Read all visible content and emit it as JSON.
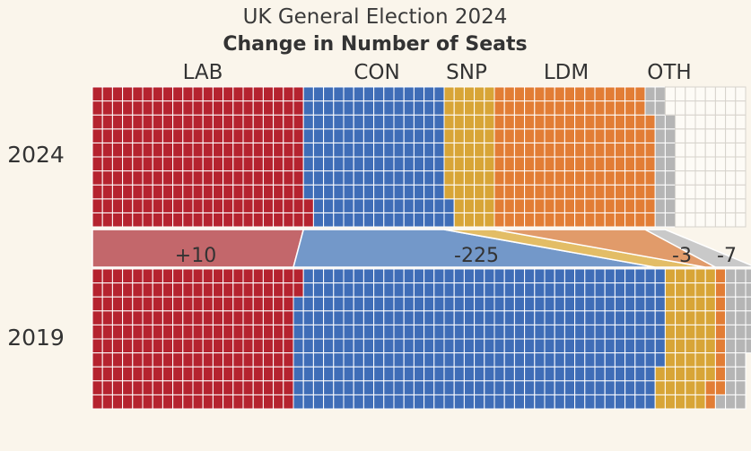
{
  "chart_data": {
    "type": "waffle",
    "title": "UK General Election 2024",
    "subtitle": "Change in Number of Seats",
    "unit": "seats",
    "rows": [
      "2024",
      "2019"
    ],
    "seats_per_column": 10,
    "total_columns": 65,
    "parties": [
      {
        "key": "lab",
        "label": "LAB",
        "color": "#b5232f",
        "seats_2024": 212,
        "seats_2019": 202,
        "change": "+10"
      },
      {
        "key": "con",
        "label": "CON",
        "color": "#3f6db7",
        "seats_2024": 140,
        "seats_2019": 365,
        "change": "-225"
      },
      {
        "key": "snp",
        "label": "SNP",
        "color": "#d8a537",
        "seats_2024": 48,
        "seats_2019": 51,
        "change": "-3"
      },
      {
        "key": "ldm",
        "label": "LDM",
        "color": "#e27d35",
        "seats_2024": 158,
        "seats_2019": 11,
        "change": ""
      },
      {
        "key": "oth",
        "label": "OTH",
        "color": "#b5b5b5",
        "seats_2024": 20,
        "seats_2019": 27,
        "change": "-7"
      }
    ],
    "empty_2024_seats": 72,
    "band_colors": {
      "lab": "#c3676b",
      "con": "#7398c9",
      "snp": "#e3bd66",
      "ldm": "#e19b6a",
      "oth": "#c9c9c9"
    }
  }
}
